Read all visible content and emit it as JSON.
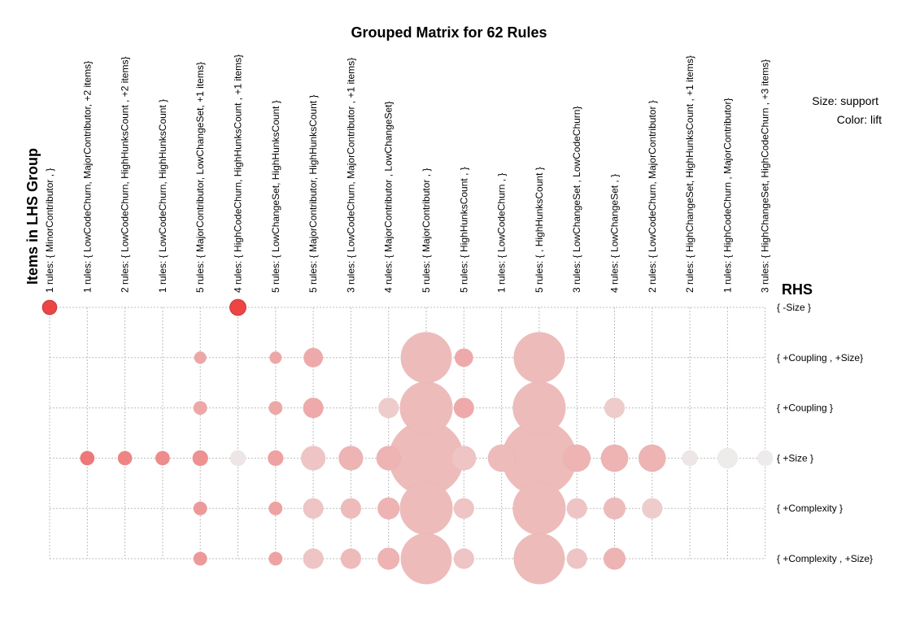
{
  "chart_data": {
    "type": "grouped-matrix",
    "title": "Grouped Matrix for 62 Rules",
    "xlabel": "Items in LHS Group",
    "ylabel": "RHS",
    "legend": {
      "size": "Size: support",
      "color": "Color: lift"
    },
    "grid": true,
    "lhs_groups": [
      "1 rules: { MinorContributor ,  }",
      "1 rules: { LowCodeChurn,  MajorContributor, +2 items}",
      "2 rules: { LowCodeChurn,  HighHunksCount , +2 items}",
      "1 rules: { LowCodeChurn,  HighHunksCount }",
      "5 rules: { MajorContributor,  LowChangeSet, +1 items}",
      "4 rules: { HighCodeChurn,  HighHunksCount , +1 items}",
      "5 rules: { LowChangeSet,  HighHunksCount }",
      "5 rules: { MajorContributor,  HighHunksCount }",
      "3 rules: { LowCodeChurn,  MajorContributor , +1 items}",
      "4 rules: { MajorContributor ,  LowChangeSet}",
      "5 rules: { MajorContributor ,  }",
      "5 rules: { HighHunksCount ,  }",
      "1 rules: { LowCodeChurn ,  }",
      "5 rules: {  ,  HighHunksCount }",
      "3 rules: { LowChangeSet ,  LowCodeChurn}",
      "4 rules: { LowChangeSet ,  }",
      "2 rules: { LowCodeChurn,  MajorContributor }",
      "2 rules: { HighChangeSet,  HighHunksCount , +1 items}",
      "1 rules: { HighCodeChurn ,  MajorContributor}",
      "3 rules: { HighChangeSet,  HighCodeChurn , +3 items}"
    ],
    "rhs_items": [
      "{ -Size }",
      "{ +Coupling , +Size}",
      "{ +Coupling }",
      "{ +Size }",
      "{ +Complexity }",
      "{ +Complexity , +Size}"
    ],
    "cells": [
      {
        "col": 0,
        "row": 0,
        "support": 0.011,
        "lift": 1.0
      },
      {
        "col": 5,
        "row": 0,
        "support": 0.014,
        "lift": 1.0
      },
      {
        "col": 4,
        "row": 1,
        "support": 0.008,
        "lift": 0.42
      },
      {
        "col": 6,
        "row": 1,
        "support": 0.008,
        "lift": 0.42
      },
      {
        "col": 7,
        "row": 1,
        "support": 0.02,
        "lift": 0.4
      },
      {
        "col": 10,
        "row": 1,
        "support": 0.14,
        "lift": 0.3
      },
      {
        "col": 11,
        "row": 1,
        "support": 0.018,
        "lift": 0.4
      },
      {
        "col": 13,
        "row": 1,
        "support": 0.14,
        "lift": 0.3
      },
      {
        "col": 4,
        "row": 2,
        "support": 0.01,
        "lift": 0.42
      },
      {
        "col": 6,
        "row": 2,
        "support": 0.01,
        "lift": 0.42
      },
      {
        "col": 7,
        "row": 2,
        "support": 0.022,
        "lift": 0.4
      },
      {
        "col": 9,
        "row": 2,
        "support": 0.022,
        "lift": 0.2
      },
      {
        "col": 10,
        "row": 2,
        "support": 0.15,
        "lift": 0.3
      },
      {
        "col": 11,
        "row": 2,
        "support": 0.022,
        "lift": 0.4
      },
      {
        "col": 13,
        "row": 2,
        "support": 0.15,
        "lift": 0.3
      },
      {
        "col": 15,
        "row": 2,
        "support": 0.022,
        "lift": 0.2
      },
      {
        "col": 1,
        "row": 3,
        "support": 0.011,
        "lift": 0.7
      },
      {
        "col": 2,
        "row": 3,
        "support": 0.011,
        "lift": 0.62
      },
      {
        "col": 3,
        "row": 3,
        "support": 0.011,
        "lift": 0.58
      },
      {
        "col": 4,
        "row": 3,
        "support": 0.013,
        "lift": 0.55
      },
      {
        "col": 5,
        "row": 3,
        "support": 0.013,
        "lift": 0.05
      },
      {
        "col": 6,
        "row": 3,
        "support": 0.013,
        "lift": 0.45
      },
      {
        "col": 7,
        "row": 3,
        "support": 0.032,
        "lift": 0.25
      },
      {
        "col": 8,
        "row": 3,
        "support": 0.032,
        "lift": 0.35
      },
      {
        "col": 9,
        "row": 3,
        "support": 0.032,
        "lift": 0.35
      },
      {
        "col": 10,
        "row": 3,
        "support": 0.3,
        "lift": 0.3
      },
      {
        "col": 11,
        "row": 3,
        "support": 0.032,
        "lift": 0.25
      },
      {
        "col": 12,
        "row": 3,
        "support": 0.04,
        "lift": 0.3
      },
      {
        "col": 13,
        "row": 3,
        "support": 0.3,
        "lift": 0.3
      },
      {
        "col": 14,
        "row": 3,
        "support": 0.04,
        "lift": 0.35
      },
      {
        "col": 15,
        "row": 3,
        "support": 0.04,
        "lift": 0.35
      },
      {
        "col": 16,
        "row": 3,
        "support": 0.04,
        "lift": 0.35
      },
      {
        "col": 17,
        "row": 3,
        "support": 0.013,
        "lift": 0.05
      },
      {
        "col": 18,
        "row": 3,
        "support": 0.022,
        "lift": 0.02
      },
      {
        "col": 19,
        "row": 3,
        "support": 0.013,
        "lift": 0.02
      },
      {
        "col": 4,
        "row": 4,
        "support": 0.01,
        "lift": 0.5
      },
      {
        "col": 6,
        "row": 4,
        "support": 0.01,
        "lift": 0.45
      },
      {
        "col": 7,
        "row": 4,
        "support": 0.022,
        "lift": 0.25
      },
      {
        "col": 8,
        "row": 4,
        "support": 0.022,
        "lift": 0.3
      },
      {
        "col": 9,
        "row": 4,
        "support": 0.026,
        "lift": 0.35
      },
      {
        "col": 10,
        "row": 4,
        "support": 0.15,
        "lift": 0.3
      },
      {
        "col": 11,
        "row": 4,
        "support": 0.022,
        "lift": 0.25
      },
      {
        "col": 13,
        "row": 4,
        "support": 0.15,
        "lift": 0.3
      },
      {
        "col": 14,
        "row": 4,
        "support": 0.022,
        "lift": 0.25
      },
      {
        "col": 15,
        "row": 4,
        "support": 0.026,
        "lift": 0.3
      },
      {
        "col": 16,
        "row": 4,
        "support": 0.022,
        "lift": 0.2
      },
      {
        "col": 4,
        "row": 5,
        "support": 0.01,
        "lift": 0.5
      },
      {
        "col": 6,
        "row": 5,
        "support": 0.01,
        "lift": 0.45
      },
      {
        "col": 7,
        "row": 5,
        "support": 0.022,
        "lift": 0.25
      },
      {
        "col": 8,
        "row": 5,
        "support": 0.022,
        "lift": 0.3
      },
      {
        "col": 9,
        "row": 5,
        "support": 0.026,
        "lift": 0.35
      },
      {
        "col": 10,
        "row": 5,
        "support": 0.14,
        "lift": 0.3
      },
      {
        "col": 11,
        "row": 5,
        "support": 0.022,
        "lift": 0.25
      },
      {
        "col": 13,
        "row": 5,
        "support": 0.14,
        "lift": 0.3
      },
      {
        "col": 14,
        "row": 5,
        "support": 0.022,
        "lift": 0.25
      },
      {
        "col": 15,
        "row": 5,
        "support": 0.026,
        "lift": 0.35
      }
    ]
  }
}
